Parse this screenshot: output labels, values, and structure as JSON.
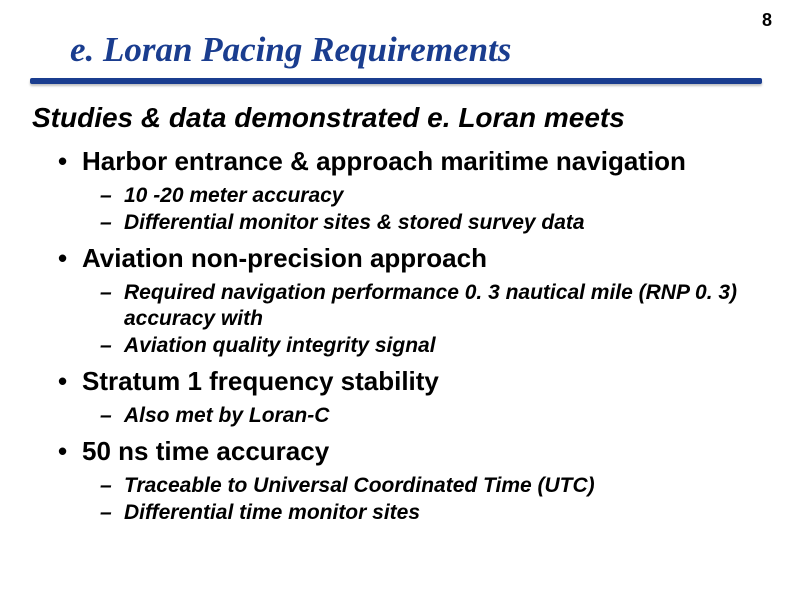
{
  "pageNumber": "8",
  "title": "e. Loran Pacing Requirements",
  "subtitle": "Studies & data demonstrated e. Loran meets",
  "bullets": [
    {
      "text": "Harbor entrance & approach maritime navigation",
      "sub": [
        "10 -20 meter accuracy",
        "Differential monitor sites & stored survey data"
      ]
    },
    {
      "text": "Aviation non-precision approach",
      "sub": [
        "Required navigation performance 0. 3 nautical mile (RNP 0. 3) accuracy with",
        "Aviation quality integrity signal"
      ]
    },
    {
      "text": "Stratum 1 frequency stability",
      "sub": [
        "Also met by Loran-C"
      ]
    },
    {
      "text": "50 ns time accuracy",
      "sub": [
        "Traceable to Universal Coordinated Time (UTC)",
        "Differential time monitor sites"
      ]
    }
  ],
  "colors": {
    "titleColor": "#1a3d8f",
    "ruleColor": "#1a3d8f",
    "textColor": "#000000",
    "background": "#ffffff"
  },
  "fonts": {
    "titleFamily": "Times New Roman",
    "bodyFamily": "Arial",
    "titleSize": 35,
    "subtitleSize": 28,
    "l1Size": 26,
    "l2Size": 21
  }
}
